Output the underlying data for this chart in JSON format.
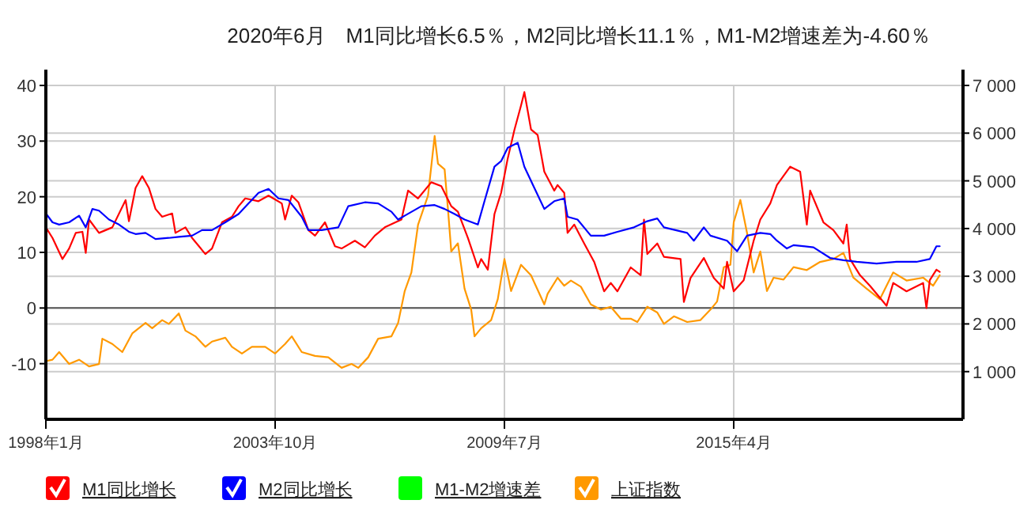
{
  "chart_data": {
    "type": "line",
    "title": "2020年6月　M1同比增长6.5％，M2同比增长11.1％，M1-M2增速差为-4.60％",
    "xlim": [
      "1998-01",
      "2021-01"
    ],
    "xticks": [
      {
        "value": "1998-01",
        "label": "1998年1月"
      },
      {
        "value": "2003-10",
        "label": "2003年10月"
      },
      {
        "value": "2009-07",
        "label": "2009年7月"
      },
      {
        "value": "2015-04",
        "label": "2015年4月"
      }
    ],
    "ylim": [
      -20,
      40
    ],
    "yticks": [
      -10,
      0,
      10,
      20,
      30,
      40
    ],
    "y2lim": [
      0,
      7000
    ],
    "y2ticks": [
      {
        "value": 1000,
        "label": "1 000"
      },
      {
        "value": 2000,
        "label": "2 000"
      },
      {
        "value": 3000,
        "label": "3 000"
      },
      {
        "value": 4000,
        "label": "4 000"
      },
      {
        "value": 5000,
        "label": "5 000"
      },
      {
        "value": 6000,
        "label": "6 000"
      },
      {
        "value": 7000,
        "label": "7 000"
      }
    ],
    "grid": true,
    "legend": "bottom",
    "line_style": "solid",
    "ref_lines": [
      {
        "axis": "y",
        "value": 0,
        "color": "#555555"
      }
    ],
    "series": [
      {
        "name": "M1同比增长",
        "color": "#ff0000",
        "axis": "y",
        "x": [
          "1998-01",
          "1998-03",
          "1998-06",
          "1998-08",
          "1998-10",
          "1998-12",
          "1999-01",
          "1999-02",
          "1999-05",
          "1999-09",
          "2000-01",
          "2000-02",
          "2000-04",
          "2000-06",
          "2000-08",
          "2000-10",
          "2000-12",
          "2001-03",
          "2001-04",
          "2001-07",
          "2001-09",
          "2002-01",
          "2002-03",
          "2002-06",
          "2002-09",
          "2002-11",
          "2003-01",
          "2003-05",
          "2003-08",
          "2003-12",
          "2004-01",
          "2004-03",
          "2004-05",
          "2004-08",
          "2004-10",
          "2005-01",
          "2005-04",
          "2005-06",
          "2005-10",
          "2006-01",
          "2006-04",
          "2006-07",
          "2006-12",
          "2007-02",
          "2007-05",
          "2007-09",
          "2007-12",
          "2008-03",
          "2008-05",
          "2008-08",
          "2008-11",
          "2008-12",
          "2009-02",
          "2009-04",
          "2009-06",
          "2009-08",
          "2009-10",
          "2009-12",
          "2010-01",
          "2010-03",
          "2010-05",
          "2010-07",
          "2010-10",
          "2010-11",
          "2011-01",
          "2011-02",
          "2011-04",
          "2011-07",
          "2011-10",
          "2012-01",
          "2012-03",
          "2012-05",
          "2012-09",
          "2012-12",
          "2013-01",
          "2013-02",
          "2013-05",
          "2013-07",
          "2013-12",
          "2014-01",
          "2014-03",
          "2014-07",
          "2014-10",
          "2015-01",
          "2015-02",
          "2015-04",
          "2015-07",
          "2015-10",
          "2015-12",
          "2016-03",
          "2016-05",
          "2016-09",
          "2016-12",
          "2017-02",
          "2017-03",
          "2017-07",
          "2017-10",
          "2018-01",
          "2018-02",
          "2018-03",
          "2018-06",
          "2018-09",
          "2019-02",
          "2019-04",
          "2019-08",
          "2020-01",
          "2020-02",
          "2020-03",
          "2020-05",
          "2020-06"
        ],
        "values": [
          14.5,
          12.6,
          8.8,
          10.7,
          13.5,
          13.7,
          9.9,
          15.9,
          13.5,
          14.5,
          19.4,
          15.6,
          21.6,
          23.7,
          21.6,
          17.8,
          16.4,
          17.0,
          13.5,
          14.5,
          12.6,
          9.7,
          10.7,
          15.4,
          16.4,
          18.3,
          19.7,
          19.2,
          20.2,
          18.8,
          15.9,
          20.2,
          19.0,
          14.0,
          13.0,
          15.4,
          11.1,
          10.7,
          12.1,
          10.9,
          13.0,
          14.5,
          15.9,
          21.1,
          19.7,
          22.6,
          21.9,
          18.3,
          17.3,
          12.6,
          7.3,
          8.8,
          6.9,
          16.9,
          20.7,
          26.9,
          32.0,
          36.4,
          38.8,
          32.1,
          31.1,
          24.5,
          21.1,
          22.1,
          20.7,
          13.5,
          15.0,
          11.6,
          8.3,
          3.0,
          4.5,
          3.0,
          7.3,
          5.9,
          15.9,
          9.7,
          11.6,
          9.2,
          8.8,
          1.1,
          5.4,
          9.0,
          5.4,
          3.5,
          8.3,
          3.0,
          5.0,
          12.1,
          15.9,
          18.8,
          22.1,
          25.4,
          24.5,
          15.0,
          21.1,
          15.4,
          14.0,
          11.6,
          15.0,
          8.8,
          5.9,
          4.0,
          0.4,
          4.5,
          3.0,
          4.5,
          0.0,
          5.0,
          6.9,
          6.5
        ]
      },
      {
        "name": "M2同比增长",
        "color": "#0000ff",
        "axis": "y",
        "x": [
          "1998-01",
          "1998-03",
          "1998-05",
          "1998-08",
          "1998-11",
          "1999-01",
          "1999-03",
          "1999-05",
          "1999-08",
          "1999-11",
          "2000-02",
          "2000-04",
          "2000-07",
          "2000-10",
          "2001-02",
          "2001-05",
          "2001-09",
          "2001-12",
          "2002-03",
          "2002-07",
          "2002-11",
          "2003-02",
          "2003-05",
          "2003-08",
          "2003-11",
          "2004-02",
          "2004-06",
          "2004-08",
          "2004-12",
          "2005-05",
          "2005-08",
          "2006-01",
          "2006-05",
          "2006-09",
          "2006-11",
          "2007-01",
          "2007-06",
          "2007-10",
          "2008-01",
          "2008-04",
          "2008-07",
          "2008-11",
          "2009-01",
          "2009-04",
          "2009-06",
          "2009-08",
          "2009-11",
          "2010-01",
          "2010-04",
          "2010-07",
          "2010-10",
          "2011-01",
          "2011-02",
          "2011-05",
          "2011-09",
          "2012-01",
          "2012-05",
          "2012-10",
          "2013-02",
          "2013-05",
          "2013-07",
          "2014-02",
          "2014-04",
          "2014-07",
          "2014-09",
          "2015-02",
          "2015-05",
          "2015-08",
          "2015-12",
          "2016-03",
          "2016-05",
          "2016-08",
          "2016-10",
          "2017-04",
          "2017-09",
          "2018-01",
          "2018-05",
          "2018-11",
          "2019-05",
          "2019-11",
          "2020-03",
          "2020-05",
          "2020-06"
        ],
        "values": [
          17.0,
          15.4,
          15.0,
          15.4,
          16.6,
          14.5,
          17.8,
          17.5,
          15.9,
          15.0,
          13.7,
          13.3,
          13.5,
          12.4,
          12.6,
          12.8,
          13.0,
          14.0,
          14.0,
          15.4,
          16.9,
          18.8,
          20.7,
          21.4,
          19.7,
          19.4,
          16.4,
          14.0,
          14.0,
          14.5,
          18.3,
          19.0,
          18.8,
          17.3,
          15.9,
          16.6,
          18.3,
          18.5,
          17.8,
          16.9,
          15.9,
          15.0,
          19.2,
          25.4,
          26.4,
          28.8,
          29.7,
          25.4,
          21.6,
          17.8,
          19.2,
          19.7,
          16.4,
          15.9,
          13.0,
          13.0,
          13.7,
          14.5,
          15.6,
          16.1,
          14.5,
          13.5,
          12.1,
          14.5,
          13.0,
          12.1,
          10.2,
          13.0,
          13.5,
          13.3,
          12.1,
          10.7,
          11.3,
          10.9,
          9.0,
          8.6,
          8.3,
          8.0,
          8.3,
          8.3,
          8.8,
          11.1,
          11.1
        ]
      },
      {
        "name": "M1-M2增速差",
        "color": "#00ff00",
        "axis": "y"
      },
      {
        "name": "上证指数",
        "color": "#ff9900",
        "axis": "y2",
        "x": [
          "1998-01",
          "1998-03",
          "1998-05",
          "1998-08",
          "1998-11",
          "1999-02",
          "1999-05",
          "1999-06",
          "1999-09",
          "1999-12",
          "2000-03",
          "2000-07",
          "2000-09",
          "2000-12",
          "2001-02",
          "2001-05",
          "2001-07",
          "2001-10",
          "2002-01",
          "2002-03",
          "2002-07",
          "2002-09",
          "2002-12",
          "2003-03",
          "2003-07",
          "2003-10",
          "2004-01",
          "2004-03",
          "2004-06",
          "2004-10",
          "2005-02",
          "2005-06",
          "2005-09",
          "2005-11",
          "2006-02",
          "2006-05",
          "2006-09",
          "2006-11",
          "2007-01",
          "2007-03",
          "2007-05",
          "2007-08",
          "2007-10",
          "2007-11",
          "2008-01",
          "2008-02",
          "2008-03",
          "2008-05",
          "2008-07",
          "2008-09",
          "2008-10",
          "2008-12",
          "2009-03",
          "2009-05",
          "2009-07",
          "2009-09",
          "2009-12",
          "2010-03",
          "2010-07",
          "2010-08",
          "2010-11",
          "2011-01",
          "2011-03",
          "2011-06",
          "2011-09",
          "2011-12",
          "2012-03",
          "2012-06",
          "2012-09",
          "2012-11",
          "2013-02",
          "2013-05",
          "2013-07",
          "2013-10",
          "2014-02",
          "2014-06",
          "2014-09",
          "2014-11",
          "2015-01",
          "2015-03",
          "2015-04",
          "2015-06",
          "2015-08",
          "2015-10",
          "2015-12",
          "2016-02",
          "2016-04",
          "2016-07",
          "2016-10",
          "2017-02",
          "2017-06",
          "2017-10",
          "2018-01",
          "2018-04",
          "2018-08",
          "2018-12",
          "2019-04",
          "2019-08",
          "2020-01",
          "2020-04",
          "2020-06"
        ],
        "values": [
          1220,
          1250,
          1410,
          1160,
          1250,
          1110,
          1160,
          1690,
          1580,
          1410,
          1800,
          2020,
          1910,
          2080,
          2000,
          2220,
          1860,
          1740,
          1520,
          1630,
          1710,
          1520,
          1380,
          1520,
          1520,
          1380,
          1580,
          1740,
          1410,
          1330,
          1300,
          1080,
          1160,
          1080,
          1300,
          1690,
          1740,
          2020,
          2690,
          3080,
          4080,
          4690,
          5940,
          5360,
          5240,
          4410,
          3520,
          3690,
          2740,
          2300,
          1740,
          1910,
          2080,
          2520,
          3360,
          2690,
          3240,
          3020,
          2410,
          2630,
          2970,
          2800,
          2910,
          2780,
          2410,
          2300,
          2360,
          2110,
          2110,
          2040,
          2360,
          2240,
          2000,
          2160,
          2040,
          2080,
          2300,
          2470,
          3190,
          3240,
          4130,
          4600,
          3910,
          3080,
          3520,
          2690,
          2970,
          2930,
          3190,
          3130,
          3300,
          3360,
          3490,
          2970,
          2740,
          2520,
          3080,
          2910,
          2970,
          2800,
          3020
        ]
      }
    ]
  }
}
